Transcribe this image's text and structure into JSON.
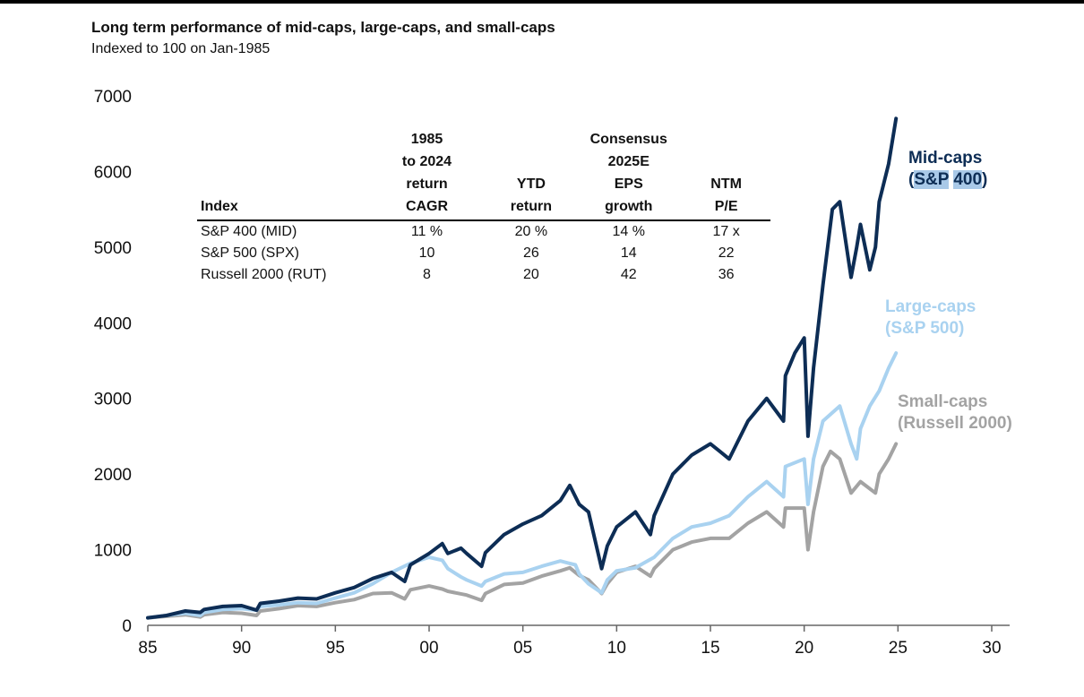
{
  "page": {
    "title": "Long term performance of mid-caps, large-caps, and small-caps",
    "subtitle": "Indexed to 100 on Jan-1985"
  },
  "table": {
    "headers": [
      "Index",
      "1985\nto 2024\nreturn\nCAGR",
      "YTD\nreturn",
      "Consensus\n2025E\nEPS\ngrowth",
      "NTM\nP/E"
    ],
    "rows": [
      [
        "S&P 400 (MID)",
        "11 %",
        "20 %",
        "14 %",
        "17 x"
      ],
      [
        "S&P 500 (SPX)",
        "10",
        "26",
        "14",
        "22"
      ],
      [
        "Russell 2000 (RUT)",
        "8",
        "20",
        "42",
        "36"
      ]
    ]
  },
  "labels": {
    "mid_line1": "Mid-caps",
    "mid_line2_open": "(",
    "mid_line2_a": "S&P",
    "mid_line2_b": "400",
    "mid_line2_close": ")",
    "large_line1": "Large-caps",
    "large_line2": "(S&P 500)",
    "small_line1": "Small-caps",
    "small_line2": "(Russell 2000)"
  },
  "colors": {
    "mid": "#0d2d55",
    "large": "#a9d2f0",
    "small": "#a3a3a3",
    "axis": "#666666",
    "highlight": "#a9c9e8"
  },
  "chart_data": {
    "type": "line",
    "xlim": [
      1985,
      2030
    ],
    "ylim": [
      0,
      7000
    ],
    "x_tick_values": [
      1985,
      1990,
      1995,
      2000,
      2005,
      2010,
      2015,
      2020,
      2025,
      2030
    ],
    "x_tick_labels": [
      "85",
      "90",
      "95",
      "00",
      "05",
      "10",
      "15",
      "20",
      "25",
      "30"
    ],
    "y_tick_values": [
      0,
      1000,
      2000,
      3000,
      4000,
      5000,
      6000,
      7000
    ],
    "y_tick_labels": [
      "0",
      "1000",
      "2000",
      "3000",
      "4000",
      "5000",
      "6000",
      "7000"
    ],
    "grid": false,
    "legend": "direct labels at right",
    "series": [
      {
        "name": "Mid-caps (S&P 400)",
        "color": "#0d2d55",
        "x": [
          1985,
          1986,
          1987,
          1987.8,
          1988,
          1989,
          1990,
          1990.8,
          1991,
          1992,
          1993,
          1994,
          1995,
          1996,
          1997,
          1998,
          1998.7,
          1999,
          2000,
          2000.7,
          2001,
          2001.7,
          2002,
          2002.8,
          2003,
          2004,
          2005,
          2006,
          2007,
          2007.5,
          2008,
          2008.5,
          2009.2,
          2009.5,
          2010,
          2011,
          2011.8,
          2012,
          2013,
          2014,
          2015,
          2015.5,
          2016,
          2017,
          2018,
          2018.9,
          2019,
          2019.5,
          2020,
          2020.2,
          2020.5,
          2021,
          2021.5,
          2021.9,
          2022.5,
          2022.8,
          2023,
          2023.5,
          2023.8,
          2024,
          2024.5,
          2024.9
        ],
        "y": [
          100,
          130,
          190,
          170,
          210,
          250,
          260,
          200,
          290,
          320,
          360,
          350,
          430,
          500,
          620,
          700,
          580,
          800,
          950,
          1080,
          950,
          1020,
          950,
          780,
          960,
          1200,
          1340,
          1450,
          1650,
          1850,
          1600,
          1500,
          750,
          1050,
          1300,
          1500,
          1200,
          1450,
          2000,
          2250,
          2400,
          2300,
          2200,
          2700,
          3000,
          2700,
          3300,
          3600,
          3800,
          2500,
          3400,
          4500,
          5500,
          5600,
          4600,
          5000,
          5300,
          4700,
          5000,
          5600,
          6100,
          6700
        ]
      },
      {
        "name": "Large-caps (S&P 500)",
        "color": "#a9d2f0",
        "x": [
          1985,
          1986,
          1987,
          1987.8,
          1988,
          1989,
          1990,
          1990.8,
          1991,
          1992,
          1993,
          1994,
          1995,
          1996,
          1997,
          1998,
          1999,
          2000,
          2000.7,
          2001,
          2001.7,
          2002,
          2002.8,
          2003,
          2004,
          2005,
          2006,
          2007,
          2007.8,
          2008,
          2008.5,
          2009.2,
          2009.5,
          2010,
          2011,
          2012,
          2013,
          2014,
          2015,
          2016,
          2017,
          2018,
          2018.9,
          2019,
          2020,
          2020.2,
          2020.5,
          2021,
          2021.9,
          2022.5,
          2022.8,
          2023,
          2023.5,
          2024,
          2024.5,
          2024.9
        ],
        "y": [
          100,
          130,
          160,
          130,
          170,
          210,
          220,
          200,
          250,
          270,
          300,
          290,
          360,
          430,
          550,
          700,
          820,
          900,
          860,
          750,
          640,
          600,
          520,
          580,
          680,
          700,
          780,
          850,
          800,
          680,
          550,
          430,
          600,
          720,
          760,
          900,
          1150,
          1300,
          1350,
          1450,
          1700,
          1900,
          1700,
          2100,
          2200,
          1600,
          2200,
          2700,
          2900,
          2400,
          2200,
          2600,
          2900,
          3100,
          3400,
          3600
        ]
      },
      {
        "name": "Small-caps (Russell 2000)",
        "color": "#a3a3a3",
        "x": [
          1985,
          1986,
          1987,
          1987.8,
          1988,
          1989,
          1990,
          1990.8,
          1991,
          1992,
          1993,
          1994,
          1995,
          1996,
          1997,
          1998,
          1998.7,
          1999,
          2000,
          2000.7,
          2001,
          2002,
          2002.8,
          2003,
          2004,
          2005,
          2006,
          2007,
          2007.5,
          2008,
          2008.5,
          2009.2,
          2009.5,
          2010,
          2011,
          2011.8,
          2012,
          2013,
          2014,
          2015,
          2016,
          2017,
          2018,
          2018.9,
          2019,
          2020,
          2020.2,
          2020.5,
          2021,
          2021.4,
          2021.9,
          2022.5,
          2023,
          2023.8,
          2024,
          2024.5,
          2024.9
        ],
        "y": [
          100,
          120,
          140,
          110,
          140,
          170,
          160,
          130,
          190,
          220,
          260,
          250,
          300,
          340,
          420,
          430,
          350,
          470,
          520,
          480,
          450,
          400,
          330,
          420,
          540,
          560,
          650,
          720,
          760,
          660,
          600,
          420,
          550,
          700,
          780,
          650,
          750,
          1000,
          1100,
          1150,
          1150,
          1350,
          1500,
          1300,
          1550,
          1550,
          1000,
          1500,
          2100,
          2300,
          2200,
          1750,
          1900,
          1750,
          2000,
          2200,
          2400
        ]
      }
    ]
  }
}
